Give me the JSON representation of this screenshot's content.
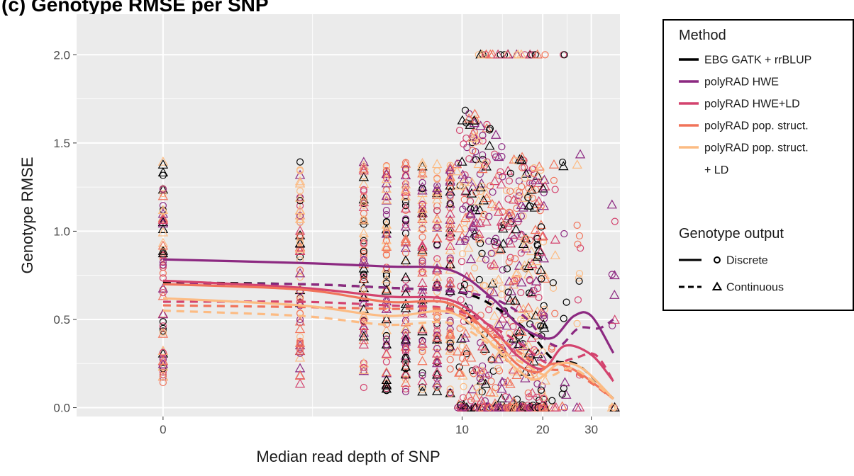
{
  "chart_data": {
    "type": "scatter",
    "title": "(c) Genotype RMSE per SNP",
    "xlabel": "Median read depth of SNP",
    "ylabel": "Genotype RMSE",
    "x_scale": "log1p",
    "xlim": [
      -0.5,
      38
    ],
    "ylim": [
      -0.05,
      2.23
    ],
    "x_ticks": [
      {
        "value": 0,
        "label": "0"
      },
      {
        "value": 10,
        "label": "10"
      },
      {
        "value": 20,
        "label": "20"
      },
      {
        "value": 30,
        "label": "30"
      }
    ],
    "y_ticks": [
      {
        "value": 0.0,
        "label": "0.0"
      },
      {
        "value": 0.5,
        "label": "0.5"
      },
      {
        "value": 1.0,
        "label": "1.0"
      },
      {
        "value": 1.5,
        "label": "1.5"
      },
      {
        "value": 2.0,
        "label": "2.0"
      }
    ],
    "grid": true,
    "background": "#ebebeb",
    "legend": {
      "position": "right",
      "method_title": "Method",
      "output_title": "Genotype output",
      "methods": [
        {
          "label": "EBG GATK + rrBLUP",
          "color": "#000000"
        },
        {
          "label": "polyRAD HWE",
          "color": "#8c2981"
        },
        {
          "label": "polyRAD HWE+LD",
          "color": "#d3436e"
        },
        {
          "label": "polyRAD pop. struct.",
          "color": "#f1735a"
        },
        {
          "label": "polyRAD pop. struct.",
          "label2": "+ LD",
          "color": "#fcbb83"
        }
      ],
      "outputs": [
        {
          "label": "Discrete",
          "linetype": "solid",
          "shape": "circle"
        },
        {
          "label": "Continuous",
          "linetype": "dashed",
          "shape": "triangle"
        }
      ]
    },
    "series": [
      {
        "name": "EBG GATK + rrBLUP",
        "output": "Continuous",
        "linetype": "dashed",
        "x": [
          0,
          2,
          5,
          10,
          14,
          18,
          22,
          27,
          36
        ],
        "y": [
          0.71,
          0.7,
          0.68,
          0.65,
          0.55,
          0.42,
          0.27,
          0.24,
          0.05
        ]
      },
      {
        "name": "polyRAD HWE",
        "output": "Discrete",
        "linetype": "solid",
        "x": [
          0,
          2,
          5,
          9,
          13,
          16,
          19,
          22,
          26,
          30,
          36
        ],
        "y": [
          0.84,
          0.82,
          0.8,
          0.78,
          0.62,
          0.48,
          0.41,
          0.4,
          0.52,
          0.52,
          0.31
        ]
      },
      {
        "name": "polyRAD HWE",
        "output": "Continuous",
        "linetype": "dashed",
        "x": [
          0,
          2,
          5,
          9,
          13,
          17,
          20,
          23,
          27,
          32,
          36
        ],
        "y": [
          0.7,
          0.7,
          0.68,
          0.66,
          0.62,
          0.52,
          0.4,
          0.35,
          0.45,
          0.45,
          0.5
        ]
      },
      {
        "name": "polyRAD HWE+LD",
        "output": "Discrete",
        "linetype": "solid",
        "x": [
          0,
          2,
          5,
          9,
          13,
          16,
          20,
          24,
          30,
          36
        ],
        "y": [
          0.72,
          0.68,
          0.63,
          0.61,
          0.45,
          0.3,
          0.22,
          0.35,
          0.3,
          0.15
        ]
      },
      {
        "name": "polyRAD HWE+LD",
        "output": "Continuous",
        "linetype": "dashed",
        "x": [
          0,
          2,
          5,
          9,
          13,
          17,
          21,
          26,
          31,
          36
        ],
        "y": [
          0.6,
          0.6,
          0.58,
          0.56,
          0.46,
          0.35,
          0.25,
          0.28,
          0.3,
          0.15
        ]
      },
      {
        "name": "polyRAD pop. struct.",
        "output": "Discrete",
        "linetype": "solid",
        "x": [
          0,
          2,
          5,
          9,
          13,
          16,
          19,
          22,
          27,
          36
        ],
        "y": [
          0.7,
          0.67,
          0.6,
          0.59,
          0.4,
          0.25,
          0.2,
          0.25,
          0.2,
          0.05
        ]
      },
      {
        "name": "polyRAD pop. struct.",
        "output": "Continuous",
        "linetype": "dashed",
        "x": [
          0,
          2,
          5,
          9,
          13,
          17,
          21,
          26,
          36
        ],
        "y": [
          0.58,
          0.57,
          0.56,
          0.55,
          0.42,
          0.3,
          0.22,
          0.2,
          0.05
        ]
      },
      {
        "name": "polyRAD pop. struct. + LD",
        "output": "Discrete",
        "linetype": "solid",
        "x": [
          0,
          2,
          5,
          9,
          13,
          16,
          19,
          23,
          28,
          36
        ],
        "y": [
          0.62,
          0.58,
          0.52,
          0.54,
          0.36,
          0.22,
          0.16,
          0.25,
          0.22,
          0.05
        ]
      },
      {
        "name": "polyRAD pop. struct. + LD",
        "output": "Continuous",
        "linetype": "dashed",
        "x": [
          0,
          2,
          5,
          9,
          13,
          17,
          21,
          26,
          36
        ],
        "y": [
          0.55,
          0.52,
          0.47,
          0.48,
          0.35,
          0.25,
          0.18,
          0.22,
          0.05
        ]
      }
    ]
  }
}
